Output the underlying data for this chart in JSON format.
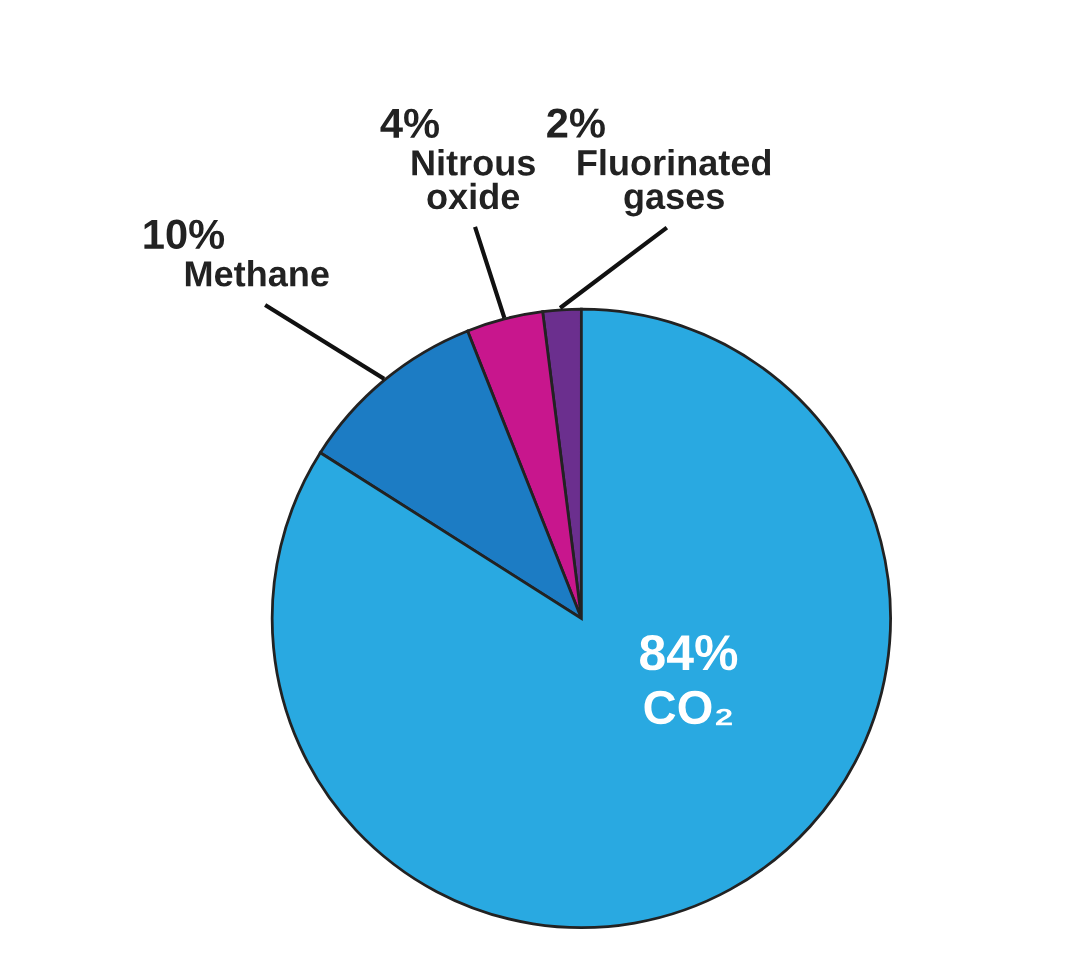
{
  "chart_data": {
    "type": "pie",
    "categories": [
      "Fluorinated gases",
      "Nitrous oxide",
      "Methane",
      "CO₂"
    ],
    "values": [
      2,
      4,
      10,
      84
    ],
    "colors": [
      "#6b2f8e",
      "#c8168d",
      "#1c7cc4",
      "#29a9e1"
    ],
    "value_labels": [
      "2%",
      "4%",
      "10%",
      "84%"
    ],
    "legend": false
  }
}
